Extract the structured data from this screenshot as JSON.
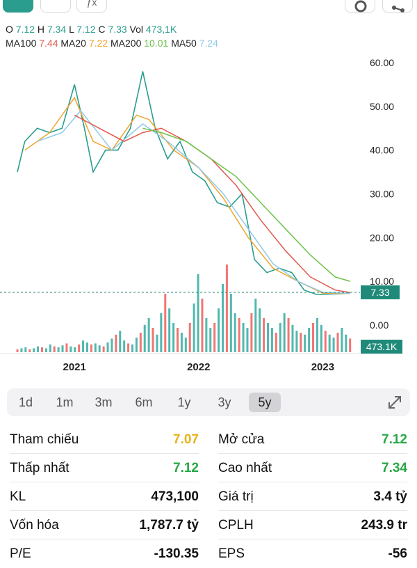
{
  "ohlc": {
    "o_label": "O",
    "o": "7.12",
    "h_label": "H",
    "h": "7.34",
    "l_label": "L",
    "l": "7.12",
    "c_label": "C",
    "c": "7.33",
    "vol_label": "Vol",
    "vol": "473,1K"
  },
  "ma": {
    "ma100_label": "MA100",
    "ma100": "7.44",
    "ma20_label": "MA20",
    "ma20": "7.22",
    "ma200_label": "MA200",
    "ma200": "10.01",
    "ma50_label": "MA50",
    "ma50": "7.24"
  },
  "colors": {
    "price": "#2a9d8f",
    "ma100": "#e05a4f",
    "ma20": "#f0a52e",
    "ma200": "#6cc24a",
    "ma50": "#8ecae6",
    "up": "#26a69a",
    "down": "#ef5350"
  },
  "chart_data": {
    "type": "line",
    "y_ticks": [
      "60.00",
      "50.00",
      "40.00",
      "30.00",
      "20.00",
      "10.00",
      "0.00"
    ],
    "x_ticks": [
      "2021",
      "2022",
      "2023"
    ],
    "last_price_label": "7.33",
    "last_volume_label": "473.1K",
    "series": [
      {
        "name": "price",
        "x": [
          2020.54,
          2020.6,
          2020.7,
          2020.8,
          2020.9,
          2021.0,
          2021.08,
          2021.15,
          2021.25,
          2021.35,
          2021.45,
          2021.55,
          2021.65,
          2021.75,
          2021.85,
          2021.95,
          2022.05,
          2022.15,
          2022.25,
          2022.35,
          2022.45,
          2022.55,
          2022.65,
          2022.75,
          2022.85,
          2022.95,
          2023.05,
          2023.15,
          2023.22
        ],
        "y": [
          35,
          42,
          45,
          44,
          45,
          55,
          45,
          35,
          40,
          40,
          45,
          58,
          45,
          38,
          42,
          35,
          33,
          28,
          27,
          30,
          15,
          12,
          13,
          12,
          8,
          7,
          7.1,
          7.2,
          7.33
        ]
      },
      {
        "name": "MA20",
        "x": [
          2020.6,
          2020.8,
          2021.0,
          2021.15,
          2021.3,
          2021.5,
          2021.6,
          2021.8,
          2022.0,
          2022.2,
          2022.4,
          2022.6,
          2022.8,
          2023.0,
          2023.22
        ],
        "y": [
          40,
          44,
          52,
          42,
          40,
          48,
          47,
          40,
          36,
          29,
          20,
          13,
          10,
          7.3,
          7.22
        ]
      },
      {
        "name": "MA50",
        "x": [
          2020.7,
          2020.9,
          2021.05,
          2021.3,
          2021.55,
          2021.75,
          2022.0,
          2022.2,
          2022.4,
          2022.6,
          2022.8,
          2023.0,
          2023.22
        ],
        "y": [
          42,
          44,
          49,
          40,
          46,
          42,
          36,
          30,
          22,
          14,
          10,
          7.5,
          7.24
        ]
      },
      {
        "name": "MA100",
        "x": [
          2021.0,
          2021.2,
          2021.4,
          2021.55,
          2021.7,
          2021.9,
          2022.1,
          2022.3,
          2022.5,
          2022.7,
          2022.9,
          2023.1,
          2023.22
        ],
        "y": [
          48,
          45,
          42,
          44,
          45,
          42,
          38,
          32,
          24,
          17,
          11,
          8,
          7.44
        ]
      },
      {
        "name": "MA200",
        "x": [
          2021.55,
          2021.7,
          2021.9,
          2022.1,
          2022.3,
          2022.5,
          2022.7,
          2022.9,
          2023.1,
          2023.22
        ],
        "y": [
          45,
          44,
          42,
          38,
          34,
          28,
          22,
          16,
          11,
          10.01
        ]
      }
    ],
    "volume": {
      "x_start": 2020.54,
      "x_end": 2023.22,
      "max": 100,
      "values": [
        3,
        4,
        5,
        3,
        4,
        6,
        5,
        4,
        8,
        6,
        5,
        7,
        9,
        6,
        5,
        8,
        12,
        10,
        8,
        9,
        7,
        6,
        10,
        14,
        18,
        22,
        12,
        9,
        8,
        15,
        20,
        28,
        35,
        25,
        18,
        40,
        60,
        45,
        30,
        25,
        20,
        15,
        30,
        50,
        80,
        55,
        35,
        25,
        30,
        45,
        70,
        90,
        60,
        40,
        35,
        30,
        25,
        40,
        55,
        45,
        35,
        30,
        25,
        20,
        30,
        40,
        35,
        28,
        22,
        20,
        18,
        25,
        30,
        35,
        28,
        22,
        18,
        15,
        20,
        25,
        18,
        14
      ]
    }
  },
  "ranges": [
    "1d",
    "1m",
    "3m",
    "6m",
    "1y",
    "3y",
    "5y"
  ],
  "active_range": "5y",
  "stats": {
    "ref_label": "Tham chiếu",
    "ref": "7.07",
    "open_label": "Mở cửa",
    "open": "7.12",
    "low_label": "Thấp nhất",
    "low": "7.12",
    "high_label": "Cao nhất",
    "high": "7.34",
    "kl_label": "KL",
    "kl": "473,100",
    "value_label": "Giá trị",
    "value": "3.4 tỷ",
    "cap_label": "Vốn hóa",
    "cap": "1,787.7 tỷ",
    "cplh_label": "CPLH",
    "cplh": "243.9 tr",
    "pe_label": "P/E",
    "pe": "-130.35",
    "eps_label": "EPS",
    "eps": "-56"
  }
}
